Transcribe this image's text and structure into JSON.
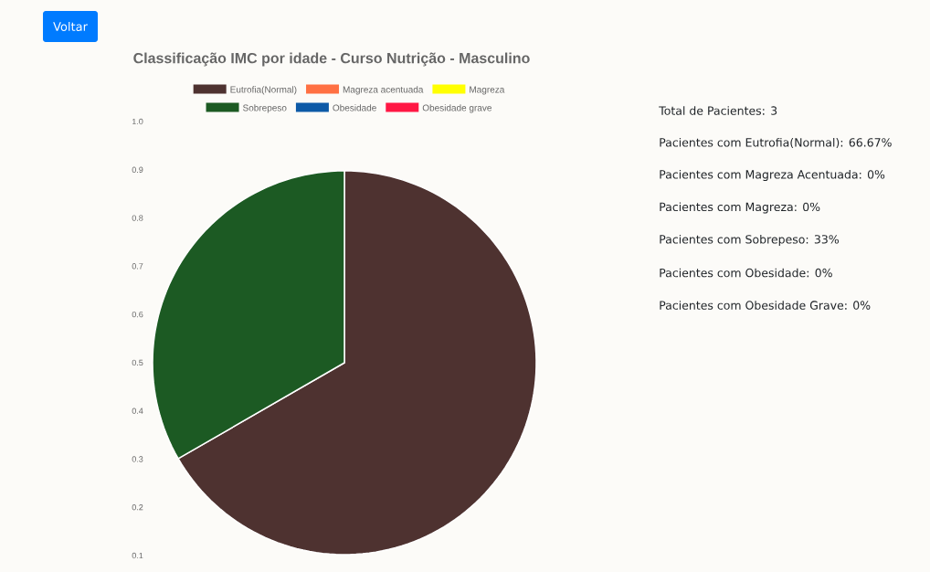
{
  "chart_data": {
    "type": "pie",
    "title": "Classificação IMC por idade - Curso Nutrição - Masculino",
    "categories": [
      "Eutrofia(Normal)",
      "Magreza acentuada",
      "Magreza",
      "Sobrepeso",
      "Obesidade",
      "Obesidade grave"
    ],
    "values": [
      66.67,
      0,
      0,
      33.33,
      0,
      0
    ],
    "colors": [
      "#4e3230",
      "#ff7043",
      "#ffff00",
      "#1c5a23",
      "#0d5aa7",
      "#ff1744"
    ],
    "legend": "top",
    "annotations": [
      "Voltar",
      "Total de Pacientes: 3",
      "Pacientes com Eutrofia(Normal): 66.67%",
      "Pacientes com Magreza Acentuada: 0%",
      "Pacientes com Magreza: 0%",
      "Pacientes com Sobrepeso: 33%",
      "Pacientes com Obesidade: 0%",
      "Pacientes com Obesidade Grave: 0%",
      "1.0",
      "0.9",
      "0.8",
      "0.7",
      "0.6",
      "0.5",
      "0.4",
      "0.3",
      "0.2",
      "0.1"
    ]
  }
}
